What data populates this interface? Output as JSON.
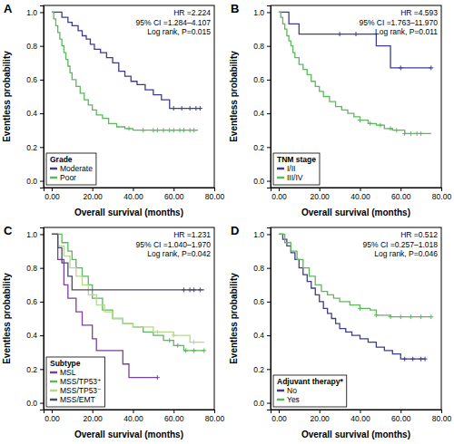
{
  "chart_data": [
    {
      "type": "line",
      "title": "A",
      "x_label": "Overall survival (months)",
      "y_label": "Eventless probability",
      "annotations": [
        "HR =2.224",
        "95% CI =1.284–4.107",
        "Log rank, P=0.015"
      ],
      "legend_title": "Grade",
      "legend": "lower left",
      "line_style": "step",
      "marker": "plus",
      "xlim": [
        -4,
        80
      ],
      "ylim": [
        -0.04,
        1.04
      ],
      "xticks": [
        {
          "value": 0,
          "label": "0.00"
        },
        {
          "value": 20,
          "label": "20.00"
        },
        {
          "value": 40,
          "label": "40.00"
        },
        {
          "value": 60,
          "label": "60.00"
        },
        {
          "value": 80,
          "label": "80.00"
        }
      ],
      "yticks": [
        {
          "value": 0,
          "label": "0.0"
        },
        {
          "value": 0.2,
          "label": "0.2"
        },
        {
          "value": 0.4,
          "label": "0.4"
        },
        {
          "value": 0.6,
          "label": "0.6"
        },
        {
          "value": 0.8,
          "label": "0.8"
        },
        {
          "value": 1,
          "label": "1.0"
        }
      ],
      "series": [
        {
          "name": "Moderate",
          "color": "#3d3d8f",
          "x": [
            0,
            5,
            8,
            10,
            13,
            15,
            17,
            19,
            21,
            24,
            27,
            30,
            33,
            36,
            39,
            42,
            46,
            50,
            54,
            58,
            73
          ],
          "values": [
            1.0,
            0.97,
            0.94,
            0.92,
            0.89,
            0.86,
            0.84,
            0.81,
            0.78,
            0.76,
            0.73,
            0.7,
            0.65,
            0.62,
            0.59,
            0.57,
            0.54,
            0.51,
            0.48,
            0.43,
            0.43
          ],
          "censored": [
            60,
            64,
            68,
            71,
            73
          ]
        },
        {
          "name": "Poor",
          "color": "#5cb85c",
          "x": [
            0,
            1,
            2,
            3,
            4,
            5,
            6,
            7,
            8,
            9,
            10,
            12,
            14,
            16,
            18,
            20,
            22,
            25,
            28,
            32,
            36,
            40,
            72
          ],
          "values": [
            1.0,
            0.96,
            0.92,
            0.88,
            0.84,
            0.8,
            0.76,
            0.72,
            0.68,
            0.64,
            0.6,
            0.56,
            0.52,
            0.48,
            0.45,
            0.42,
            0.39,
            0.37,
            0.34,
            0.32,
            0.31,
            0.3,
            0.3
          ],
          "censored": [
            38,
            45,
            50,
            52,
            55,
            58,
            60,
            63,
            65,
            68,
            70
          ]
        }
      ]
    },
    {
      "type": "line",
      "title": "B",
      "x_label": "Overall survival (months)",
      "y_label": "Eventless probability",
      "annotations": [
        "HR =4.593",
        "95% CI =1.763–11.970",
        "Log rank, P=0.011"
      ],
      "legend_title": "TNM stage",
      "legend": "lower left",
      "line_style": "step",
      "marker": "plus",
      "xlim": [
        -4,
        80
      ],
      "ylim": [
        -0.04,
        1.04
      ],
      "xticks": [
        {
          "value": 0,
          "label": "0.00"
        },
        {
          "value": 20,
          "label": "20.00"
        },
        {
          "value": 40,
          "label": "40.00"
        },
        {
          "value": 60,
          "label": "60.00"
        },
        {
          "value": 80,
          "label": "80.00"
        }
      ],
      "yticks": [
        {
          "value": 0,
          "label": "0.0"
        },
        {
          "value": 0.2,
          "label": "0.2"
        },
        {
          "value": 0.4,
          "label": "0.4"
        },
        {
          "value": 0.6,
          "label": "0.6"
        },
        {
          "value": 0.8,
          "label": "0.8"
        },
        {
          "value": 1,
          "label": "1.0"
        }
      ],
      "series": [
        {
          "name": "I/II",
          "color": "#3d3d8f",
          "x": [
            0,
            5,
            10,
            48,
            55,
            75
          ],
          "values": [
            1.0,
            0.93,
            0.87,
            0.8,
            0.67,
            0.67
          ],
          "censored": [
            30,
            38,
            60,
            75
          ]
        },
        {
          "name": "III/IV",
          "color": "#5cb85c",
          "x": [
            0,
            1,
            2,
            3,
            4,
            5,
            6,
            7,
            8,
            10,
            12,
            14,
            16,
            18,
            20,
            22,
            25,
            28,
            31,
            34,
            37,
            40,
            44,
            48,
            52,
            56,
            62,
            75
          ],
          "values": [
            1.0,
            0.97,
            0.93,
            0.9,
            0.86,
            0.83,
            0.8,
            0.76,
            0.73,
            0.69,
            0.66,
            0.63,
            0.59,
            0.56,
            0.53,
            0.5,
            0.47,
            0.44,
            0.42,
            0.4,
            0.38,
            0.36,
            0.34,
            0.33,
            0.31,
            0.3,
            0.28,
            0.28
          ],
          "censored": [
            40,
            45,
            50,
            55,
            58,
            62,
            65,
            68,
            70
          ]
        }
      ]
    },
    {
      "type": "line",
      "title": "C",
      "x_label": "Overall survival (months)",
      "y_label": "Eventless probability",
      "annotations": [
        "HR =1.231",
        "95% CI =1.040–1.970",
        "Log rank, P=0.042"
      ],
      "legend_title": "Subtype",
      "legend": "lower left",
      "line_style": "step",
      "marker": "plus",
      "xlim": [
        -4,
        80
      ],
      "ylim": [
        -0.04,
        1.04
      ],
      "xticks": [
        {
          "value": 0,
          "label": "0.00"
        },
        {
          "value": 20,
          "label": "20.00"
        },
        {
          "value": 40,
          "label": "40.00"
        },
        {
          "value": 60,
          "label": "60.00"
        },
        {
          "value": 80,
          "label": "80.00"
        }
      ],
      "yticks": [
        {
          "value": 0,
          "label": "0.0"
        },
        {
          "value": 0.2,
          "label": "0.2"
        },
        {
          "value": 0.4,
          "label": "0.4"
        },
        {
          "value": 0.6,
          "label": "0.6"
        },
        {
          "value": 0.8,
          "label": "0.8"
        },
        {
          "value": 1,
          "label": "1.0"
        }
      ],
      "series": [
        {
          "name": "MSL",
          "color": "#7b3f9e",
          "x": [
            0,
            3,
            6,
            8,
            12,
            15,
            20,
            22,
            35,
            38,
            42,
            52
          ],
          "values": [
            1.0,
            0.85,
            0.7,
            0.62,
            0.54,
            0.46,
            0.38,
            0.31,
            0.23,
            0.15,
            0.15,
            0.15
          ],
          "censored": [
            52
          ]
        },
        {
          "name": "MSS/TP53⁺",
          "color": "#5cb85c",
          "x": [
            0,
            5,
            8,
            10,
            12,
            15,
            18,
            20,
            25,
            30,
            35,
            40,
            45,
            50,
            55,
            60,
            65,
            75
          ],
          "values": [
            1.0,
            0.95,
            0.9,
            0.85,
            0.8,
            0.75,
            0.7,
            0.62,
            0.55,
            0.5,
            0.47,
            0.45,
            0.42,
            0.4,
            0.37,
            0.34,
            0.31,
            0.31
          ],
          "censored": [
            58,
            62,
            66,
            70,
            75
          ]
        },
        {
          "name": "MSS/TP53⁻",
          "color": "#b5d98a",
          "x": [
            0,
            3,
            6,
            9,
            12,
            15,
            18,
            22,
            26,
            30,
            35,
            40,
            50,
            60,
            68,
            75
          ],
          "values": [
            1.0,
            0.93,
            0.87,
            0.8,
            0.75,
            0.7,
            0.64,
            0.58,
            0.54,
            0.5,
            0.47,
            0.45,
            0.42,
            0.4,
            0.36,
            0.36
          ],
          "censored": [
            52,
            60,
            70
          ]
        },
        {
          "name": "MSS/EMT",
          "color": "#4a4a6a",
          "x": [
            0,
            3,
            5,
            8,
            10,
            12,
            75
          ],
          "values": [
            1.0,
            0.92,
            0.83,
            0.75,
            0.67,
            0.67,
            0.67
          ],
          "censored": [
            65,
            68,
            70,
            73
          ]
        }
      ]
    },
    {
      "type": "line",
      "title": "D",
      "x_label": "Overall survival (months)",
      "y_label": "Eventless probability",
      "annotations": [
        "HR =0.512",
        "95% CI =0.257–1.018",
        "Log rank, P=0.046"
      ],
      "legend_title": "Adjuvant therapy*",
      "legend": "lower left",
      "line_style": "step",
      "marker": "plus",
      "xlim": [
        -4,
        80
      ],
      "ylim": [
        -0.04,
        1.04
      ],
      "xticks": [
        {
          "value": 0,
          "label": "0.00"
        },
        {
          "value": 20,
          "label": "20.00"
        },
        {
          "value": 40,
          "label": "40.00"
        },
        {
          "value": 60,
          "label": "60.00"
        },
        {
          "value": 80,
          "label": "80.00"
        }
      ],
      "yticks": [
        {
          "value": 0,
          "label": "0.0"
        },
        {
          "value": 0.2,
          "label": "0.2"
        },
        {
          "value": 0.4,
          "label": "0.4"
        },
        {
          "value": 0.6,
          "label": "0.6"
        },
        {
          "value": 0.8,
          "label": "0.8"
        },
        {
          "value": 1,
          "label": "1.0"
        }
      ],
      "series": [
        {
          "name": "No",
          "color": "#3d3d8f",
          "x": [
            0,
            2,
            4,
            6,
            8,
            10,
            12,
            14,
            16,
            18,
            20,
            22,
            24,
            26,
            28,
            30,
            33,
            36,
            40,
            44,
            48,
            52,
            56,
            60,
            72
          ],
          "values": [
            1.0,
            0.97,
            0.93,
            0.89,
            0.85,
            0.8,
            0.76,
            0.72,
            0.68,
            0.64,
            0.6,
            0.56,
            0.53,
            0.5,
            0.47,
            0.44,
            0.42,
            0.4,
            0.38,
            0.36,
            0.33,
            0.31,
            0.29,
            0.26,
            0.26
          ],
          "censored": [
            62,
            66,
            70,
            72
          ]
        },
        {
          "name": "Yes",
          "color": "#5cb85c",
          "x": [
            0,
            3,
            6,
            9,
            12,
            15,
            18,
            21,
            24,
            27,
            30,
            35,
            40,
            45,
            48,
            55,
            75
          ],
          "values": [
            1.0,
            0.95,
            0.9,
            0.85,
            0.8,
            0.75,
            0.7,
            0.66,
            0.64,
            0.62,
            0.6,
            0.58,
            0.56,
            0.55,
            0.52,
            0.51,
            0.51
          ],
          "censored": [
            40,
            48,
            55,
            60,
            65,
            70,
            75
          ]
        }
      ]
    }
  ]
}
